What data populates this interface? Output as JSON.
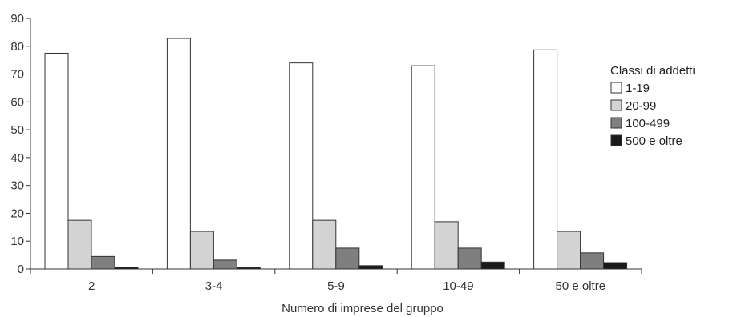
{
  "chart_data": {
    "type": "bar",
    "title": "",
    "xlabel": "Numero di imprese del gruppo",
    "ylabel": "",
    "ylim": [
      0,
      90
    ],
    "yticks": [
      0,
      10,
      20,
      30,
      40,
      50,
      60,
      70,
      80,
      90
    ],
    "grid": false,
    "legend_position": "right",
    "legend_title": "Classi di addetti",
    "categories": [
      "2",
      "3-4",
      "5-9",
      "10-49",
      "50 e oltre"
    ],
    "series": [
      {
        "name": "1-19",
        "color": "#ffffff",
        "values": [
          77.5,
          82.8,
          74.0,
          73.0,
          78.7
        ]
      },
      {
        "name": "20-99",
        "color": "#d3d3d3",
        "values": [
          17.5,
          13.5,
          17.5,
          17.0,
          13.5
        ]
      },
      {
        "name": "100-499",
        "color": "#7f7f7f",
        "values": [
          4.5,
          3.2,
          7.5,
          7.5,
          5.8
        ]
      },
      {
        "name": "500 e oltre",
        "color": "#1a1a1a",
        "values": [
          0.6,
          0.5,
          1.2,
          2.5,
          2.3
        ]
      }
    ]
  }
}
